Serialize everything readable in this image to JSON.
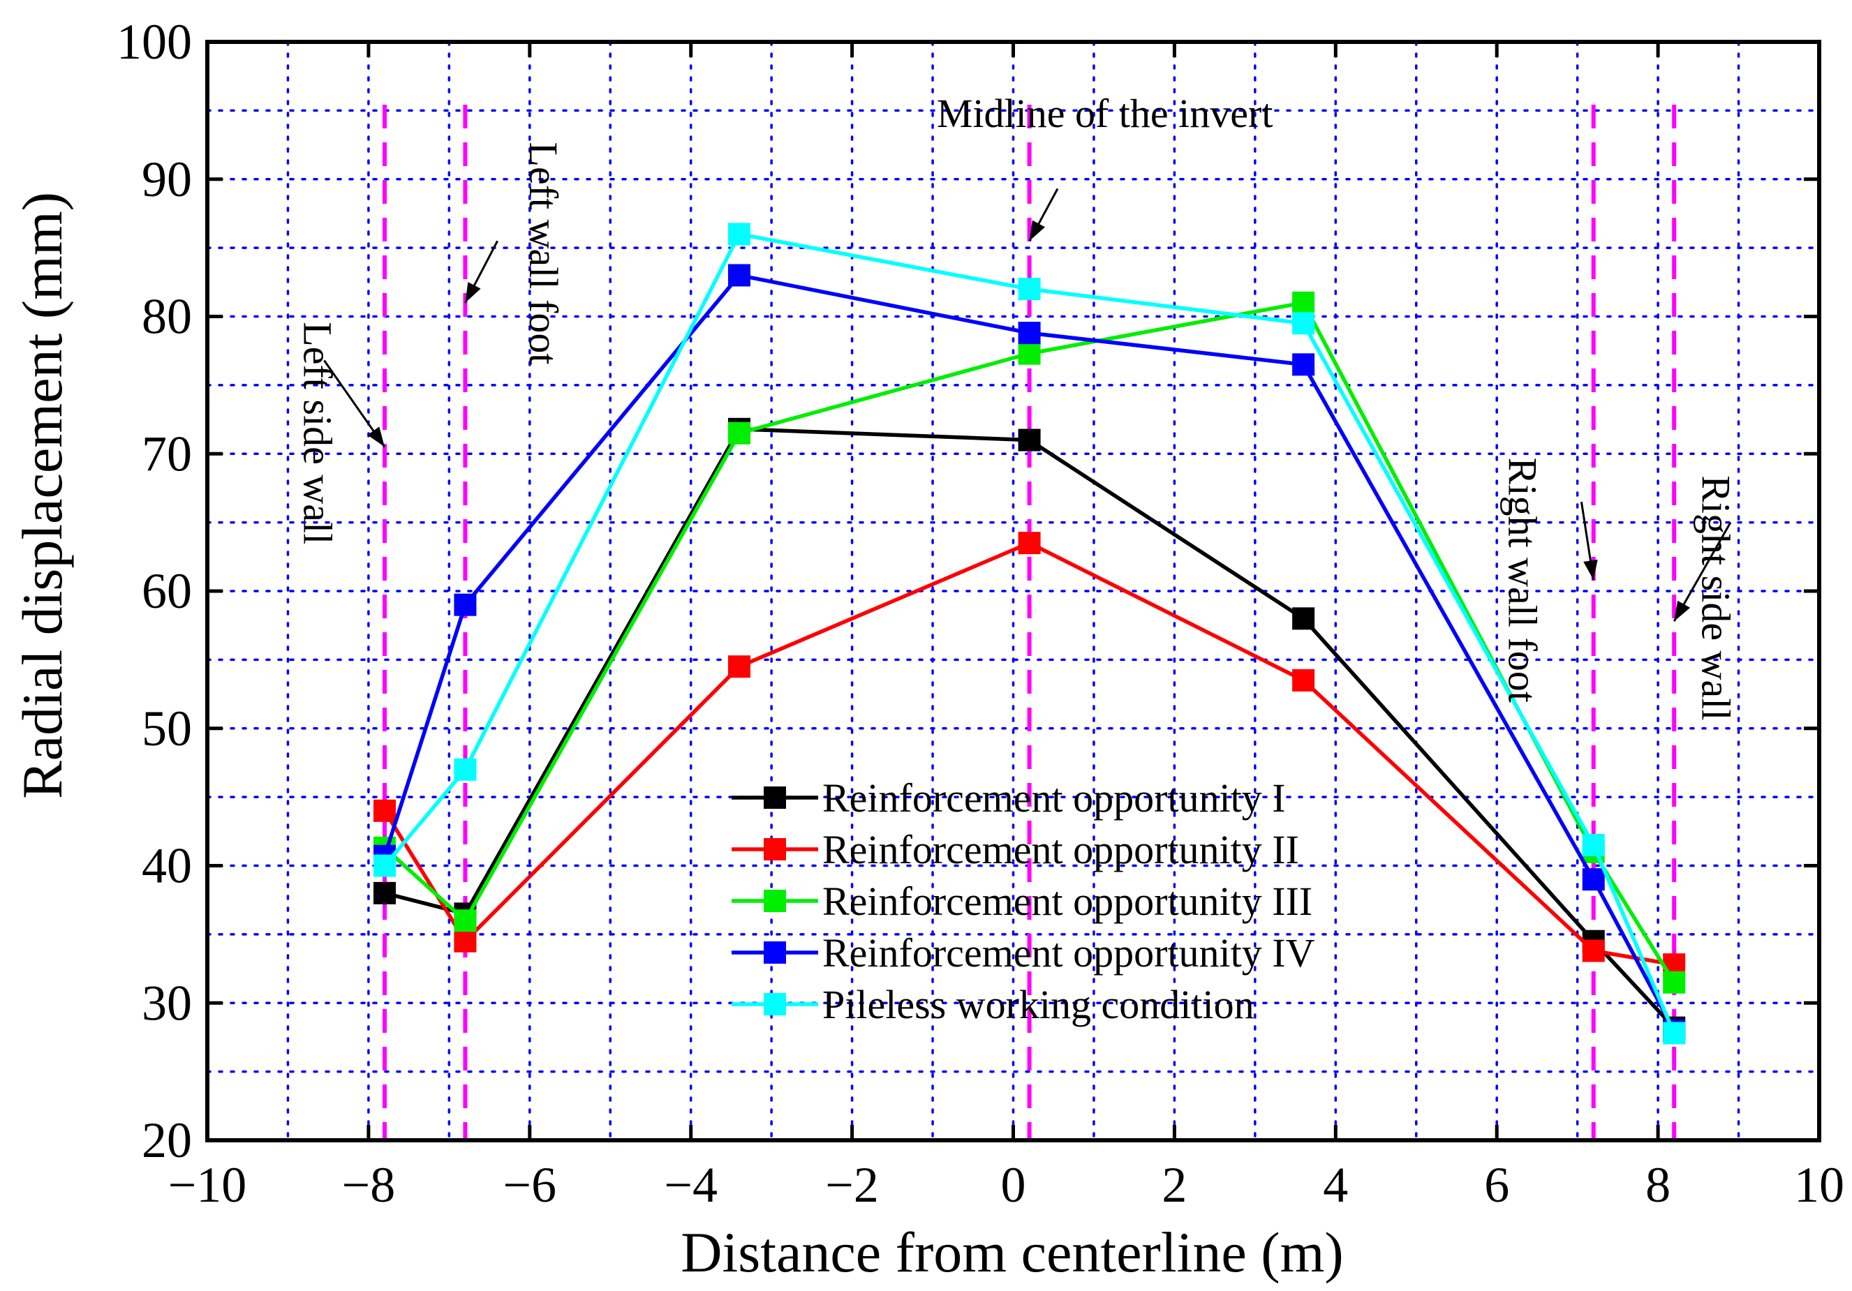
{
  "chart_data": {
    "type": "line",
    "title": "",
    "xlabel": "Distance from centerline (m)",
    "ylabel": "Radial displacement (mm)",
    "xlim": [
      -10,
      10
    ],
    "ylim": [
      20,
      100
    ],
    "x_ticks": [
      -10,
      -8,
      -6,
      -4,
      -2,
      0,
      2,
      4,
      6,
      8,
      10
    ],
    "x_tick_labels": [
      "−10",
      "−8",
      "−6",
      "−4",
      "−2",
      "0",
      "2",
      "4",
      "6",
      "8",
      "10"
    ],
    "y_ticks": [
      20,
      30,
      40,
      50,
      60,
      70,
      80,
      90,
      100
    ],
    "y_tick_labels": [
      "20",
      "30",
      "40",
      "50",
      "60",
      "70",
      "80",
      "90",
      "100"
    ],
    "grid": true,
    "x": [
      -7.8,
      -6.8,
      -3.4,
      0.2,
      3.6,
      7.2,
      8.2
    ],
    "series": [
      {
        "name": "Reinforcement opportunity I",
        "color": "#000000",
        "values": [
          38.0,
          36.5,
          71.8,
          71.0,
          58.0,
          34.5,
          28.2
        ]
      },
      {
        "name": "Reinforcement opportunity II",
        "color": "#ff0000",
        "values": [
          44.0,
          34.5,
          54.5,
          63.5,
          53.5,
          33.8,
          32.8
        ]
      },
      {
        "name": "Reinforcement opportunity III",
        "color": "#00ee00",
        "values": [
          41.3,
          36.0,
          71.5,
          77.3,
          81.0,
          41.0,
          31.5
        ]
      },
      {
        "name": "Reinforcement opportunity IV",
        "color": "#0000ff",
        "values": [
          40.7,
          59.0,
          83.0,
          78.8,
          76.5,
          39.0,
          28.0
        ]
      },
      {
        "name": "Pileless working condition",
        "color": "#00ffff",
        "values": [
          40.0,
          47.0,
          86.0,
          82.0,
          79.5,
          41.5,
          27.8
        ]
      }
    ],
    "reference_lines": {
      "x": [
        -7.8,
        -6.8,
        0.2,
        7.2,
        8.2
      ],
      "color": "#ff00ff"
    },
    "annotations": [
      {
        "text": "Left side wall",
        "orientation": "vertical-down",
        "arrow_to": [
          -7.8,
          70.5
        ]
      },
      {
        "text": "Left wall foot",
        "orientation": "vertical-down",
        "arrow_to": [
          -6.8,
          81.0
        ]
      },
      {
        "text": "Midline of the invert",
        "orientation": "horizontal",
        "arrow_to": [
          0.2,
          85.5
        ]
      },
      {
        "text": "Right wall foot",
        "orientation": "vertical-down",
        "arrow_to": [
          7.2,
          60.8
        ]
      },
      {
        "text": "Right side wall",
        "orientation": "vertical-down",
        "arrow_to": [
          8.2,
          57.8
        ]
      }
    ],
    "legend": {
      "position": "center-right-bottom"
    }
  }
}
